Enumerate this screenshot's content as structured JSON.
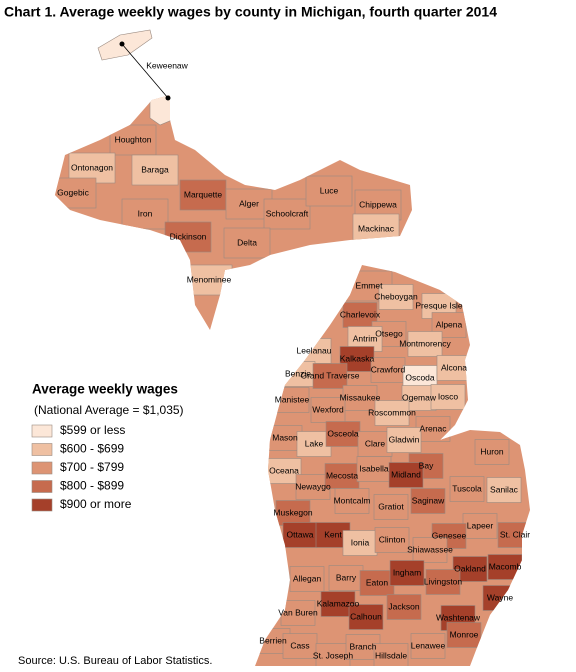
{
  "title": "Chart 1. Average weekly wages by county in Michigan, fourth quarter 2014",
  "legend": {
    "title": "Average weekly wages",
    "subtitle": "(National Average = $1,035)",
    "items": [
      {
        "label": "$599 or less",
        "color": "#fce7d8"
      },
      {
        "label": "$600 - $699",
        "color": "#efc0a2"
      },
      {
        "label": "$700 - $799",
        "color": "#dd9474"
      },
      {
        "label": "$800 - $899",
        "color": "#c66b4e"
      },
      {
        "label": "$900 or more",
        "color": "#a5402a"
      }
    ]
  },
  "source": "Source: U.S. Bureau of Labor Statistics.",
  "counties": [
    {
      "name": "Keweenaw",
      "class": 0
    },
    {
      "name": "Houghton",
      "class": 2
    },
    {
      "name": "Ontonagon",
      "class": 1
    },
    {
      "name": "Baraga",
      "class": 1
    },
    {
      "name": "Gogebic",
      "class": 2
    },
    {
      "name": "Marquette",
      "class": 3
    },
    {
      "name": "Iron",
      "class": 2
    },
    {
      "name": "Alger",
      "class": 2
    },
    {
      "name": "Schoolcraft",
      "class": 2
    },
    {
      "name": "Luce",
      "class": 2
    },
    {
      "name": "Chippewa",
      "class": 2
    },
    {
      "name": "Mackinac",
      "class": 1
    },
    {
      "name": "Dickinson",
      "class": 3
    },
    {
      "name": "Delta",
      "class": 2
    },
    {
      "name": "Menominee",
      "class": 1
    },
    {
      "name": "Emmet",
      "class": 2
    },
    {
      "name": "Cheboygan",
      "class": 1
    },
    {
      "name": "Presque Isle",
      "class": 1
    },
    {
      "name": "Charlevoix",
      "class": 3
    },
    {
      "name": "Otsego",
      "class": 2
    },
    {
      "name": "Alpena",
      "class": 2
    },
    {
      "name": "Antrim",
      "class": 1
    },
    {
      "name": "Montmorency",
      "class": 1
    },
    {
      "name": "Leelanau",
      "class": 1
    },
    {
      "name": "Kalkaska",
      "class": 4
    },
    {
      "name": "Crawford",
      "class": 2
    },
    {
      "name": "Oscoda",
      "class": 0
    },
    {
      "name": "Alcona",
      "class": 1
    },
    {
      "name": "Benzie",
      "class": 1
    },
    {
      "name": "Grand Traverse",
      "class": 3
    },
    {
      "name": "Missaukee",
      "class": 2
    },
    {
      "name": "Ogemaw",
      "class": 1
    },
    {
      "name": "Iosco",
      "class": 1
    },
    {
      "name": "Manistee",
      "class": 2
    },
    {
      "name": "Wexford",
      "class": 2
    },
    {
      "name": "Roscommon",
      "class": 1
    },
    {
      "name": "Arenac",
      "class": 2
    },
    {
      "name": "Mason",
      "class": 2
    },
    {
      "name": "Lake",
      "class": 1
    },
    {
      "name": "Osceola",
      "class": 3
    },
    {
      "name": "Clare",
      "class": 2
    },
    {
      "name": "Gladwin",
      "class": 1
    },
    {
      "name": "Huron",
      "class": 2
    },
    {
      "name": "Bay",
      "class": 3
    },
    {
      "name": "Oceana",
      "class": 1
    },
    {
      "name": "Newaygo",
      "class": 2
    },
    {
      "name": "Mecosta",
      "class": 3
    },
    {
      "name": "Isabella",
      "class": 2
    },
    {
      "name": "Midland",
      "class": 4
    },
    {
      "name": "Tuscola",
      "class": 2
    },
    {
      "name": "Sanilac",
      "class": 1
    },
    {
      "name": "Montcalm",
      "class": 2
    },
    {
      "name": "Gratiot",
      "class": 2
    },
    {
      "name": "Saginaw",
      "class": 3
    },
    {
      "name": "Muskegon",
      "class": 3
    },
    {
      "name": "Lapeer",
      "class": 2
    },
    {
      "name": "St. Clair",
      "class": 3
    },
    {
      "name": "Ottawa",
      "class": 4
    },
    {
      "name": "Kent",
      "class": 4
    },
    {
      "name": "Ionia",
      "class": 1
    },
    {
      "name": "Clinton",
      "class": 2
    },
    {
      "name": "Genesee",
      "class": 3
    },
    {
      "name": "Shiawassee",
      "class": 2
    },
    {
      "name": "Oakland",
      "class": 4
    },
    {
      "name": "Macomb",
      "class": 4
    },
    {
      "name": "Allegan",
      "class": 2
    },
    {
      "name": "Barry",
      "class": 2
    },
    {
      "name": "Eaton",
      "class": 3
    },
    {
      "name": "Ingham",
      "class": 4
    },
    {
      "name": "Livingston",
      "class": 3
    },
    {
      "name": "Wayne",
      "class": 4
    },
    {
      "name": "Kalamazoo",
      "class": 4
    },
    {
      "name": "Van Buren",
      "class": 2
    },
    {
      "name": "Calhoun",
      "class": 4
    },
    {
      "name": "Jackson",
      "class": 3
    },
    {
      "name": "Washtenaw",
      "class": 4
    },
    {
      "name": "Berrien",
      "class": 2
    },
    {
      "name": "Cass",
      "class": 2
    },
    {
      "name": "St. Joseph",
      "class": 2
    },
    {
      "name": "Branch",
      "class": 2
    },
    {
      "name": "Hillsdale",
      "class": 2
    },
    {
      "name": "Lenawee",
      "class": 2
    },
    {
      "name": "Monroe",
      "class": 3
    }
  ]
}
